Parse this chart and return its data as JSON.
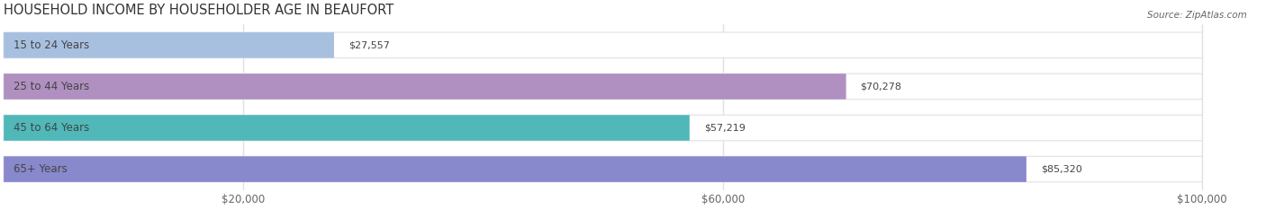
{
  "title": "HOUSEHOLD INCOME BY HOUSEHOLDER AGE IN BEAUFORT",
  "source": "Source: ZipAtlas.com",
  "categories": [
    "15 to 24 Years",
    "25 to 44 Years",
    "45 to 64 Years",
    "65+ Years"
  ],
  "values": [
    27557,
    70278,
    57219,
    85320
  ],
  "bar_colors": [
    "#a8c0e0",
    "#b090c0",
    "#50b8b8",
    "#8888cc"
  ],
  "bar_labels": [
    "$27,557",
    "$70,278",
    "$57,219",
    "$85,320"
  ],
  "xlim": [
    0,
    105000
  ],
  "data_max": 100000,
  "xticks": [
    20000,
    60000,
    100000
  ],
  "xtick_labels": [
    "$20,000",
    "$60,000",
    "$100,000"
  ],
  "background_color": "#ffffff",
  "bar_bg_color": "#f0f0f5",
  "bar_border_color": "#e0e0e8",
  "title_fontsize": 10.5,
  "label_fontsize": 8.5,
  "value_fontsize": 8.0,
  "source_fontsize": 7.5,
  "label_color_dark": "#444444",
  "label_color_white": "#ffffff",
  "grid_color": "#e0e0e8"
}
